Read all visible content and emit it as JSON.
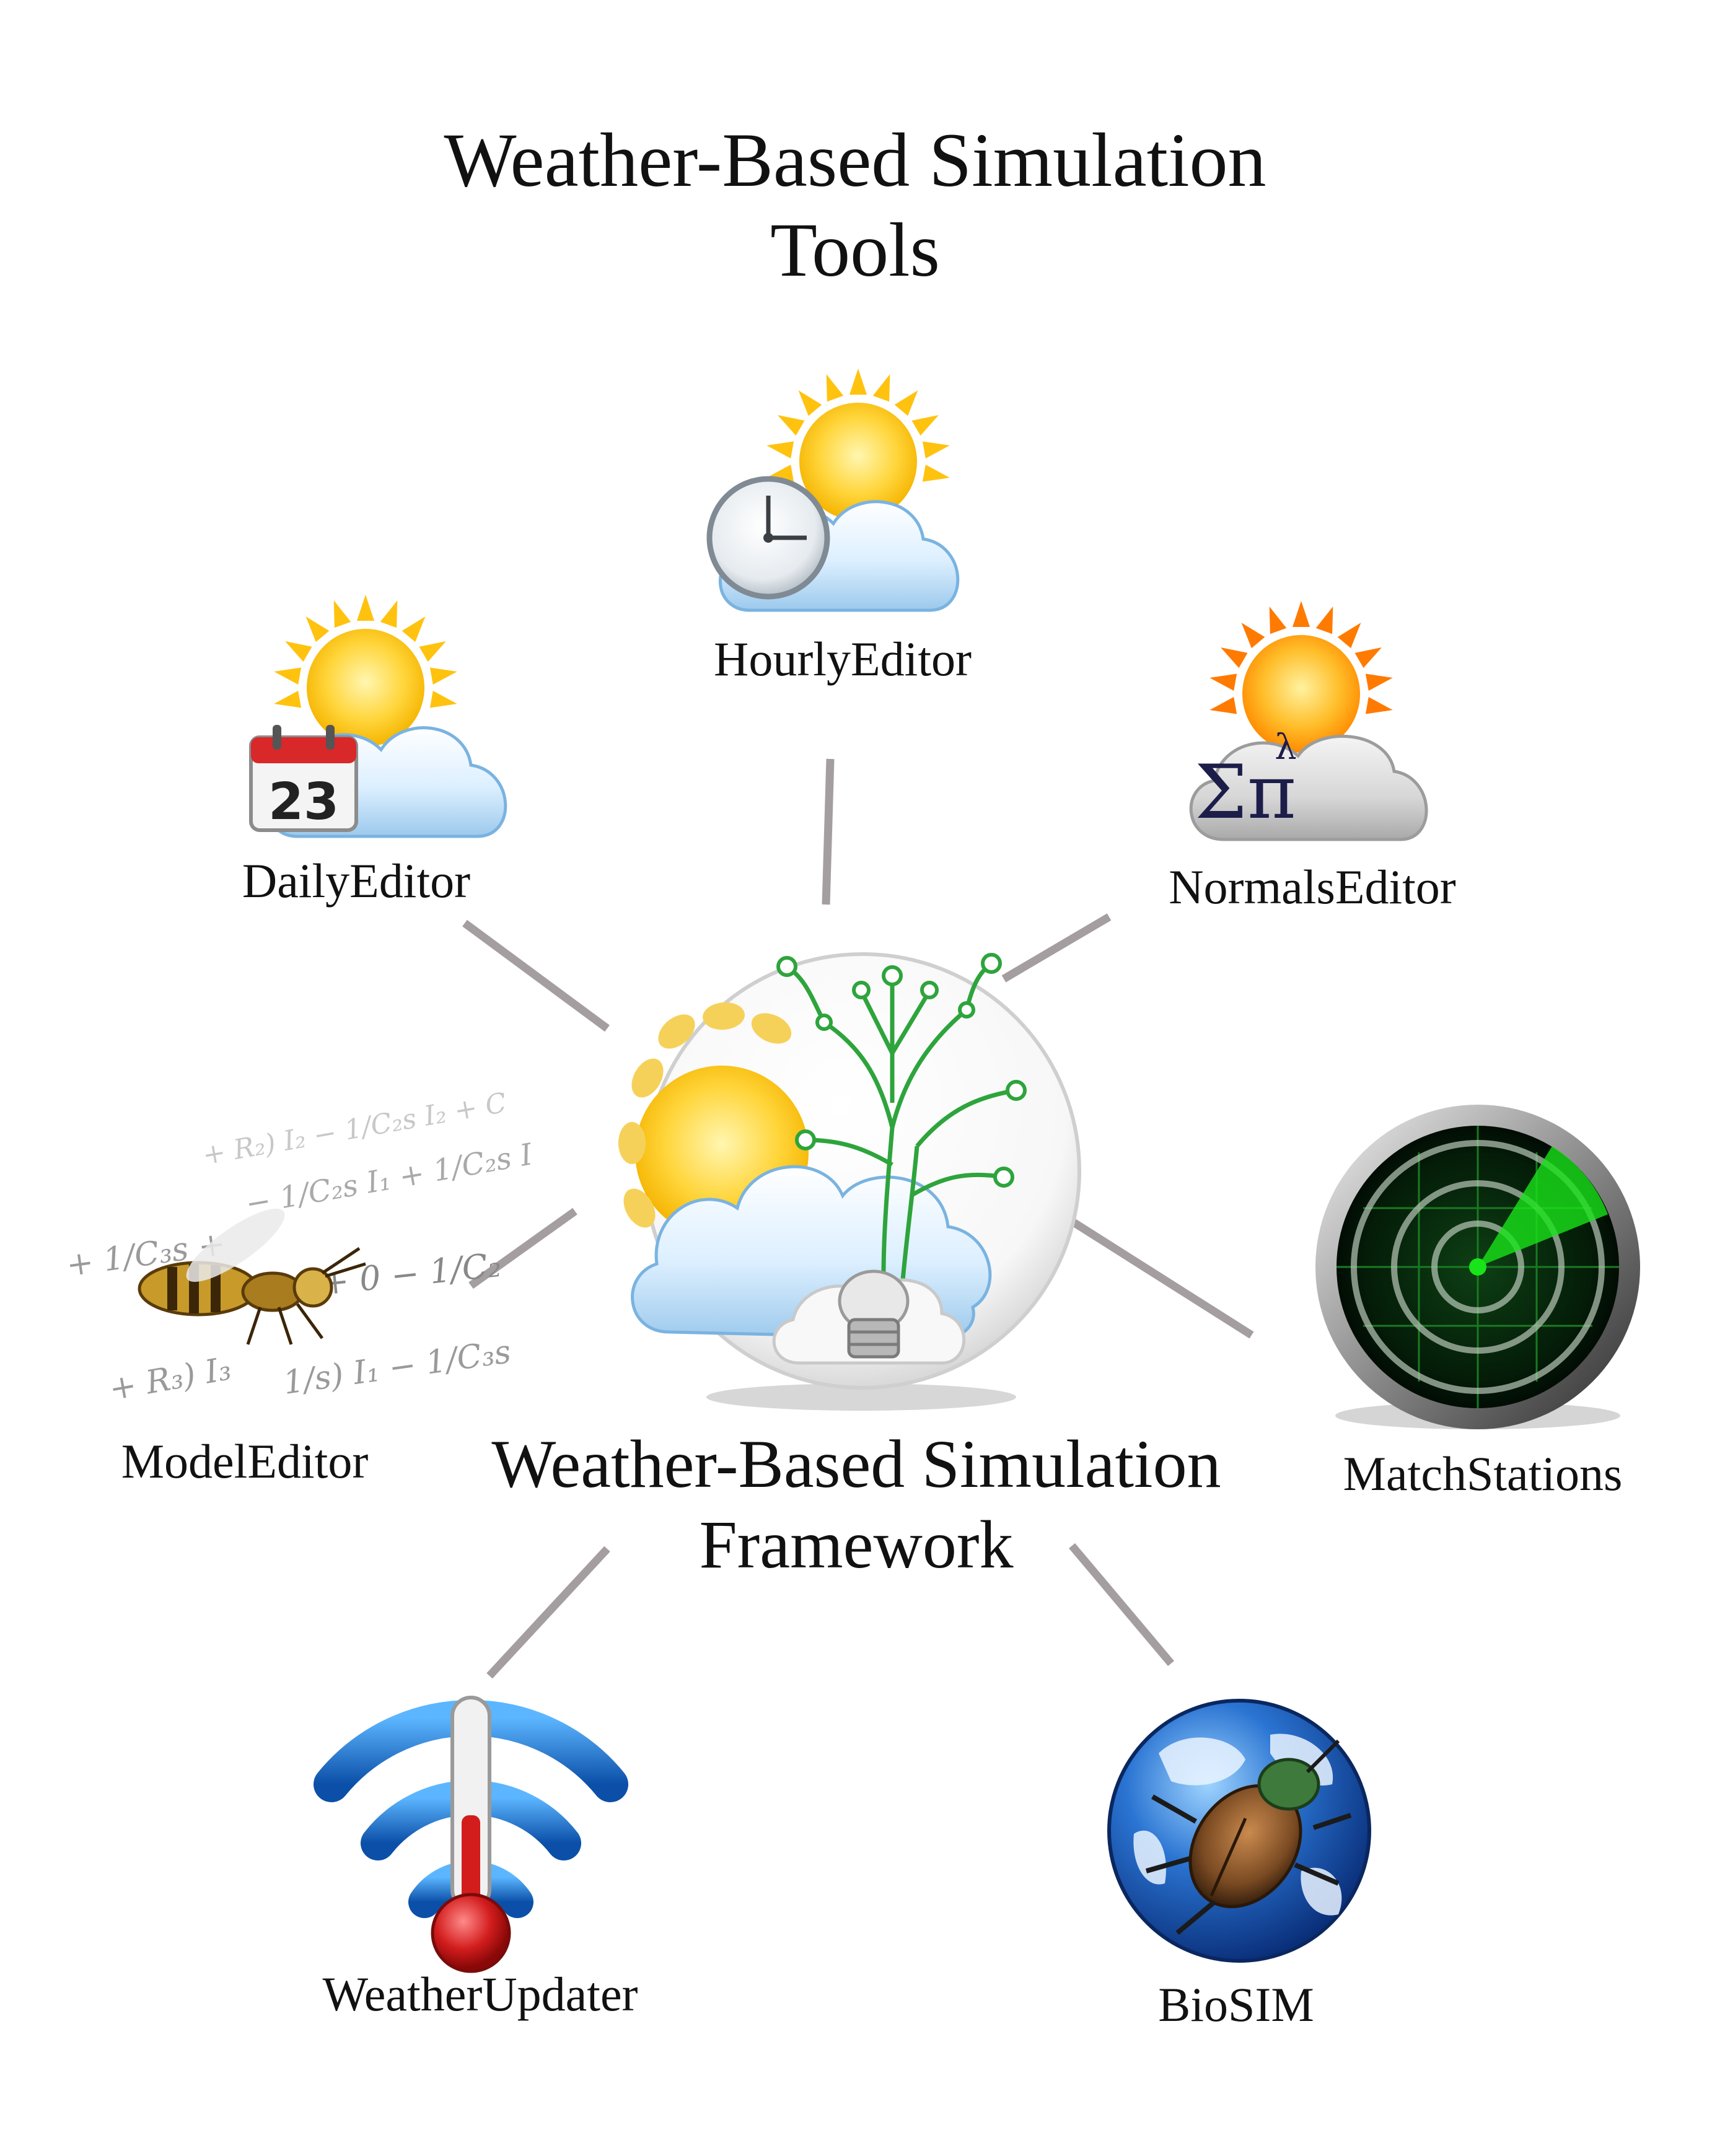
{
  "title": {
    "line1": "Weather-Based Simulation",
    "line2": "Tools"
  },
  "center": {
    "line1": "Weather-Based Simulation",
    "line2": "Framework"
  },
  "tools": {
    "hourly": {
      "label": "HourlyEditor"
    },
    "daily": {
      "label": "DailyEditor",
      "calendar_day": "23"
    },
    "normals": {
      "label": "NormalsEditor",
      "symbol": "Σπ",
      "superscript": "λ"
    },
    "model": {
      "label": "ModelEditor"
    },
    "match": {
      "label": "MatchStations"
    },
    "updater": {
      "label": "WeatherUpdater"
    },
    "biosim": {
      "label": "BioSIM"
    }
  },
  "colors": {
    "connector": "#a49ea0",
    "sun": "#ffc20e",
    "sun_orange": "#ff7a00",
    "cloud": "#d6ecfb",
    "calendar_red": "#d8282a",
    "radar_green": "#19e319",
    "wifi_blue": "#1c79d4",
    "globe_blue": "#1b5fbf",
    "circuit_green": "#2ea43c"
  }
}
